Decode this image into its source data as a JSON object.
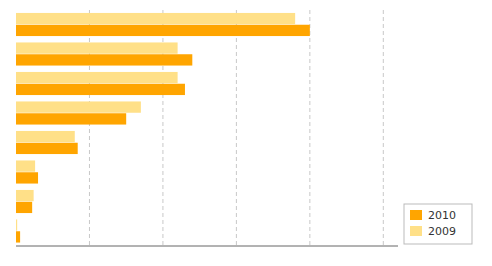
{
  "chart_data": {
    "type": "bar",
    "orientation": "horizontal",
    "categories": [
      null,
      null,
      null,
      null,
      null,
      null,
      null,
      null
    ],
    "series": [
      {
        "name": "2010",
        "color": "#FFA500",
        "values": [
          20.0,
          12.0,
          11.5,
          7.5,
          4.2,
          1.5,
          1.1,
          0.28
        ]
      },
      {
        "name": "2009",
        "color": "#FFE088",
        "values": [
          19.0,
          11.0,
          11.0,
          8.5,
          4.0,
          1.3,
          1.2,
          0.08
        ]
      }
    ],
    "xlim": [
      0,
      26
    ],
    "xticks": [
      5,
      10,
      15,
      20,
      25
    ],
    "grid": true,
    "legend": "lower right",
    "tick_labels": false
  }
}
